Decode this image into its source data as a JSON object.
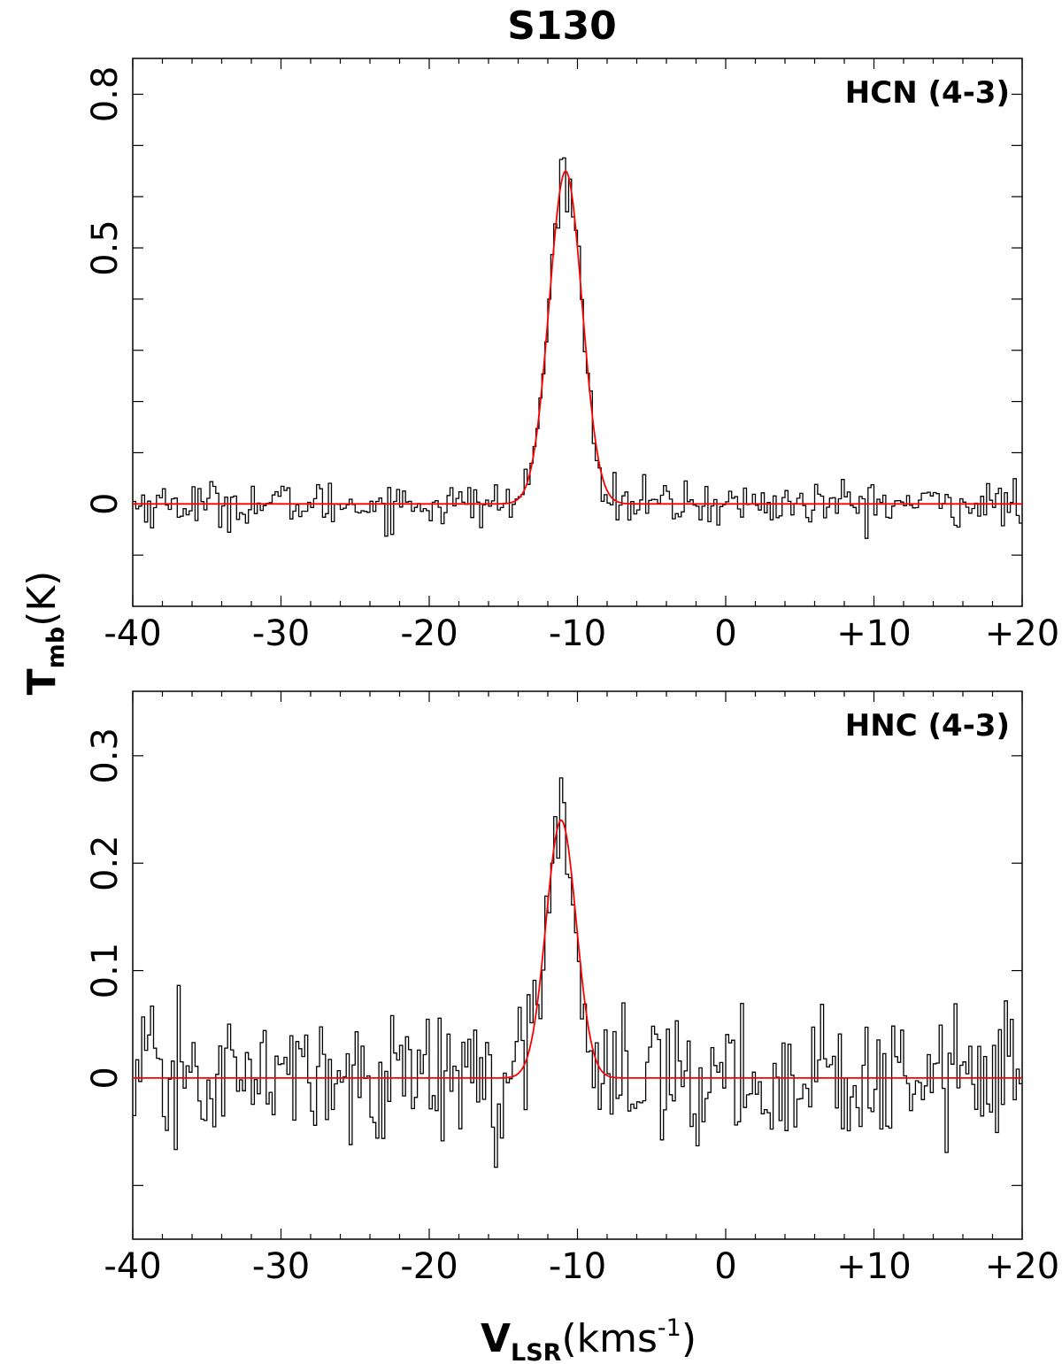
{
  "chart_data": {
    "title": "S130",
    "ylabel": {
      "main": "T",
      "sub": "mb",
      "unit": "(K)"
    },
    "xlabel": {
      "main": "V",
      "sub": "LSR",
      "unit_prefix": "(kms",
      "unit_sup": "-1",
      "unit_suffix": ")"
    },
    "panels": [
      {
        "type": "line",
        "label": "HCN (4-3)",
        "xlim": [
          -40,
          20
        ],
        "ylim": [
          -0.2,
          0.87
        ],
        "xticks": [
          -40,
          -30,
          -20,
          -10,
          0,
          10,
          20
        ],
        "xtick_labels": [
          "-40",
          "-30",
          "-20",
          "-10",
          "0",
          "+10",
          "+20"
        ],
        "yticks_labeled": [
          0,
          0.5,
          0.8
        ],
        "ytick_labels": [
          "0",
          "0.5",
          "0.8"
        ],
        "ytick_minor": [
          -0.1,
          0.1,
          0.2,
          0.3,
          0.4,
          0.6,
          0.7
        ],
        "gaussian_fit": {
          "amplitude": 0.65,
          "center": -10.8,
          "fwhm": 2.6,
          "color": "#ff0000"
        },
        "noise_rms": 0.022,
        "spectrum_color": "#000000",
        "channel_width": 0.2
      },
      {
        "type": "line",
        "label": "HNC (4-3)",
        "xlim": [
          -40,
          20
        ],
        "ylim": [
          -0.15,
          0.36
        ],
        "xticks": [
          -40,
          -30,
          -20,
          -10,
          0,
          10,
          20
        ],
        "xtick_labels": [
          "-40",
          "-30",
          "-20",
          "-10",
          "0",
          "+10",
          "+20"
        ],
        "yticks_labeled": [
          0,
          0.1,
          0.2,
          0.3
        ],
        "ytick_labels": [
          "0",
          "0.1",
          "0.2",
          "0.3"
        ],
        "ytick_minor": [
          -0.1
        ],
        "gaussian_fit": {
          "amplitude": 0.24,
          "center": -11.1,
          "fwhm": 2.4,
          "color": "#ff0000"
        },
        "noise_rms": 0.03,
        "spectrum_color": "#000000",
        "channel_width": 0.2
      }
    ]
  }
}
